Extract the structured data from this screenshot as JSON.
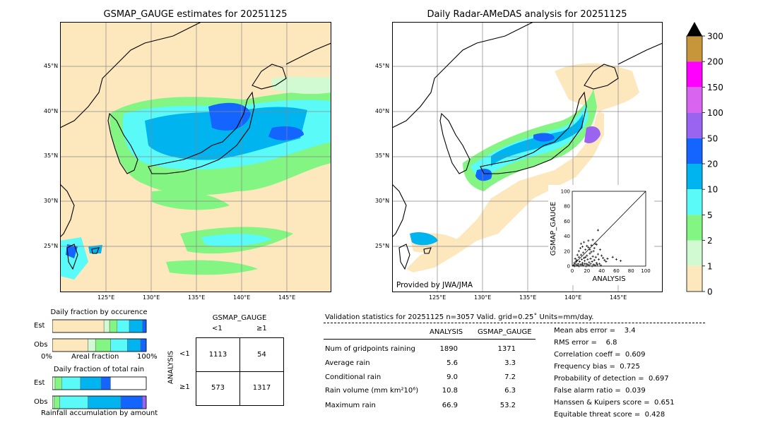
{
  "maps": {
    "left_title": "GSMAP_GAUGE estimates for 20251125",
    "right_title": "Daily Radar-AMeDAS analysis for 20251125",
    "lat_labels": [
      "45°N",
      "40°N",
      "35°N",
      "30°N",
      "25°N"
    ],
    "lon_labels": [
      "125°E",
      "130°E",
      "135°E",
      "140°E",
      "145°E"
    ],
    "provider": "Provided by JWA/JMA"
  },
  "colorbar": {
    "labels": [
      "300",
      "200",
      "150",
      "100",
      "50",
      "20",
      "10",
      "5",
      "2",
      "1",
      "0"
    ],
    "colors": [
      "#c8963a",
      "#ff00ff",
      "#d864f0",
      "#9a64f0",
      "#1464ff",
      "#00b4f0",
      "#5afaf8",
      "#82f582",
      "#d2fad2",
      "#fde8be"
    ]
  },
  "occurrence": {
    "title": "Daily fraction by occurence",
    "rows": [
      "Est",
      "Obs"
    ],
    "axis_left": "0%",
    "axis_mid": "Areal fraction",
    "axis_right": "100%"
  },
  "total_rain": {
    "title": "Daily fraction of total rain",
    "rows": [
      "Est",
      "Obs"
    ],
    "footer": "Rainfall accumulation by amount"
  },
  "contingency": {
    "col_title": "GSMAP_GAUGE",
    "col_labels": [
      "<1",
      "≥1"
    ],
    "row_title": "ANALYSIS",
    "row_labels": [
      "<1",
      "≥1"
    ],
    "cells": [
      [
        "1113",
        "54"
      ],
      [
        "573",
        "1317"
      ]
    ]
  },
  "validation": {
    "header": "Validation statistics for 20251125  n=3057 Valid. grid=0.25˚ Units=mm/day.",
    "col_analysis": "ANALYSIS",
    "col_gsmap": "GSMAP_GAUGE",
    "rows": [
      {
        "label": "Num of gridpoints raining",
        "analysis": "1890",
        "gsmap": "1371"
      },
      {
        "label": "Average rain",
        "analysis": "5.6",
        "gsmap": "3.3"
      },
      {
        "label": "Conditional rain",
        "analysis": "9.0",
        "gsmap": "7.2"
      },
      {
        "label": "Rain volume (mm km²10⁶)",
        "analysis": "10.8",
        "gsmap": "6.3"
      },
      {
        "label": "Maximum rain",
        "analysis": "66.9",
        "gsmap": "53.2"
      }
    ],
    "scores": [
      "Mean abs error =    3.4",
      "RMS error =    6.8",
      "Correlation coeff =  0.609",
      "Frequency bias =  0.725",
      "Probability of detection =  0.697",
      "False alarm ratio =  0.039",
      "Hanssen & Kuipers score =  0.651",
      "Equitable threat score =  0.428"
    ]
  },
  "chart_data": {
    "type": "scatter",
    "xlabel": "ANALYSIS",
    "ylabel": "GSMAP_GAUGE",
    "xlim": [
      0,
      100
    ],
    "ylim": [
      0,
      100
    ],
    "ticks": [
      "0",
      "20",
      "40",
      "60",
      "80",
      "100"
    ],
    "points": [
      [
        2,
        1
      ],
      [
        3,
        4
      ],
      [
        5,
        2
      ],
      [
        6,
        8
      ],
      [
        8,
        3
      ],
      [
        9,
        12
      ],
      [
        10,
        6
      ],
      [
        11,
        2
      ],
      [
        12,
        15
      ],
      [
        13,
        9
      ],
      [
        14,
        4
      ],
      [
        15,
        18
      ],
      [
        16,
        11
      ],
      [
        17,
        7
      ],
      [
        18,
        22
      ],
      [
        19,
        3
      ],
      [
        20,
        14
      ],
      [
        21,
        9
      ],
      [
        22,
        25
      ],
      [
        23,
        5
      ],
      [
        24,
        17
      ],
      [
        25,
        10
      ],
      [
        26,
        28
      ],
      [
        27,
        6
      ],
      [
        28,
        13
      ],
      [
        29,
        20
      ],
      [
        30,
        8
      ],
      [
        31,
        30
      ],
      [
        32,
        12
      ],
      [
        33,
        4
      ],
      [
        35,
        16
      ],
      [
        36,
        9
      ],
      [
        38,
        22
      ],
      [
        40,
        14
      ],
      [
        42,
        11
      ],
      [
        44,
        8
      ],
      [
        46,
        6
      ],
      [
        48,
        10
      ],
      [
        55,
        12
      ],
      [
        60,
        9
      ],
      [
        66,
        7
      ],
      [
        4,
        10
      ],
      [
        7,
        15
      ],
      [
        9,
        20
      ],
      [
        11,
        24
      ],
      [
        12,
        30
      ],
      [
        14,
        26
      ],
      [
        16,
        32
      ],
      [
        18,
        12
      ],
      [
        20,
        27
      ],
      [
        22,
        34
      ],
      [
        24,
        22
      ],
      [
        26,
        19
      ],
      [
        28,
        35
      ],
      [
        30,
        24
      ],
      [
        33,
        29
      ],
      [
        35,
        48
      ],
      [
        3,
        0
      ],
      [
        5,
        6
      ],
      [
        7,
        1
      ],
      [
        9,
        0
      ],
      [
        13,
        2
      ],
      [
        15,
        1
      ],
      [
        17,
        3
      ],
      [
        19,
        0
      ],
      [
        21,
        2
      ],
      [
        23,
        1
      ],
      [
        25,
        3
      ],
      [
        27,
        0
      ],
      [
        29,
        2
      ],
      [
        31,
        1
      ],
      [
        34,
        2
      ],
      [
        37,
        3
      ],
      [
        39,
        1
      ]
    ]
  }
}
